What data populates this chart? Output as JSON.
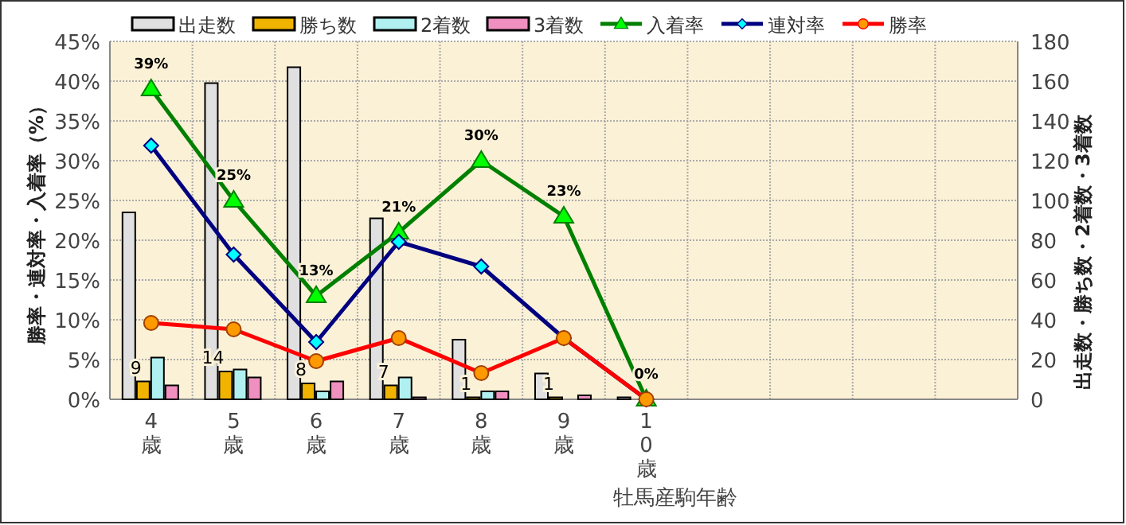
{
  "chart_data": {
    "type": "bar",
    "categories": [
      "4歳",
      "5歳",
      "6歳",
      "7歳",
      "8歳",
      "9歳",
      "10歳",
      null,
      null,
      null,
      null
    ],
    "xlabel": "牡馬産駒年齢",
    "ylabel": "勝率・連対率・入着率（%）",
    "y2label": "出走数・勝ち数・2着数・3着数",
    "ylim": [
      0,
      45
    ],
    "yticks": [
      {
        "value": 0,
        "label": "0%"
      },
      {
        "value": 5,
        "label": "5%"
      },
      {
        "value": 10,
        "label": "10%"
      },
      {
        "value": 15,
        "label": "15%"
      },
      {
        "value": 20,
        "label": "20%"
      },
      {
        "value": 25,
        "label": "25%"
      },
      {
        "value": 30,
        "label": "30%"
      },
      {
        "value": 35,
        "label": "35%"
      },
      {
        "value": 40,
        "label": "40%"
      },
      {
        "value": 45,
        "label": "45%"
      }
    ],
    "y2lim": [
      0,
      180
    ],
    "y2ticks": [
      0,
      20,
      40,
      60,
      80,
      100,
      120,
      140,
      160,
      180
    ],
    "grid": true,
    "legend": "top",
    "series": [
      {
        "name": "出走数",
        "axis": "y2",
        "color": "#e0e0e0",
        "values": [
          94,
          159,
          167,
          91,
          30,
          13,
          1,
          null,
          null,
          null,
          null
        ]
      },
      {
        "name": "勝ち数",
        "axis": "y2",
        "color": "#f0b400",
        "values": [
          9,
          14,
          8,
          7,
          1,
          1,
          0,
          null,
          null,
          null,
          null
        ],
        "value_labels": [
          "9",
          "14",
          "8",
          "7",
          "1",
          "1",
          null,
          null,
          null,
          null,
          null
        ]
      },
      {
        "name": "2着数",
        "axis": "y2",
        "color": "#b0f0f0",
        "values": [
          21,
          15,
          4,
          11,
          4,
          0,
          0,
          null,
          null,
          null,
          null
        ]
      },
      {
        "name": "3着数",
        "axis": "y2",
        "color": "#f090c0",
        "values": [
          7,
          11,
          9,
          1,
          4,
          2,
          0,
          null,
          null,
          null,
          null
        ]
      },
      {
        "name": "入着率",
        "type": "line",
        "color": "#008000",
        "marker": "triangle",
        "values": [
          39,
          25,
          13,
          21,
          30,
          23,
          0,
          null,
          null,
          null,
          null
        ],
        "value_labels": [
          "39%",
          "25%",
          "13%",
          "21%",
          "30%",
          "23%",
          "0%",
          null,
          null,
          null,
          null
        ]
      },
      {
        "name": "連対率",
        "type": "line",
        "color": "#000080",
        "marker": "diamond",
        "values": [
          31.9,
          18.2,
          7.2,
          19.8,
          16.7,
          7.7,
          0,
          null,
          null,
          null,
          null
        ]
      },
      {
        "name": "勝率",
        "type": "line",
        "color": "#ff0000",
        "marker": "circle",
        "values": [
          9.6,
          8.8,
          4.8,
          7.7,
          3.3,
          7.7,
          0,
          null,
          null,
          null,
          null
        ]
      }
    ]
  }
}
